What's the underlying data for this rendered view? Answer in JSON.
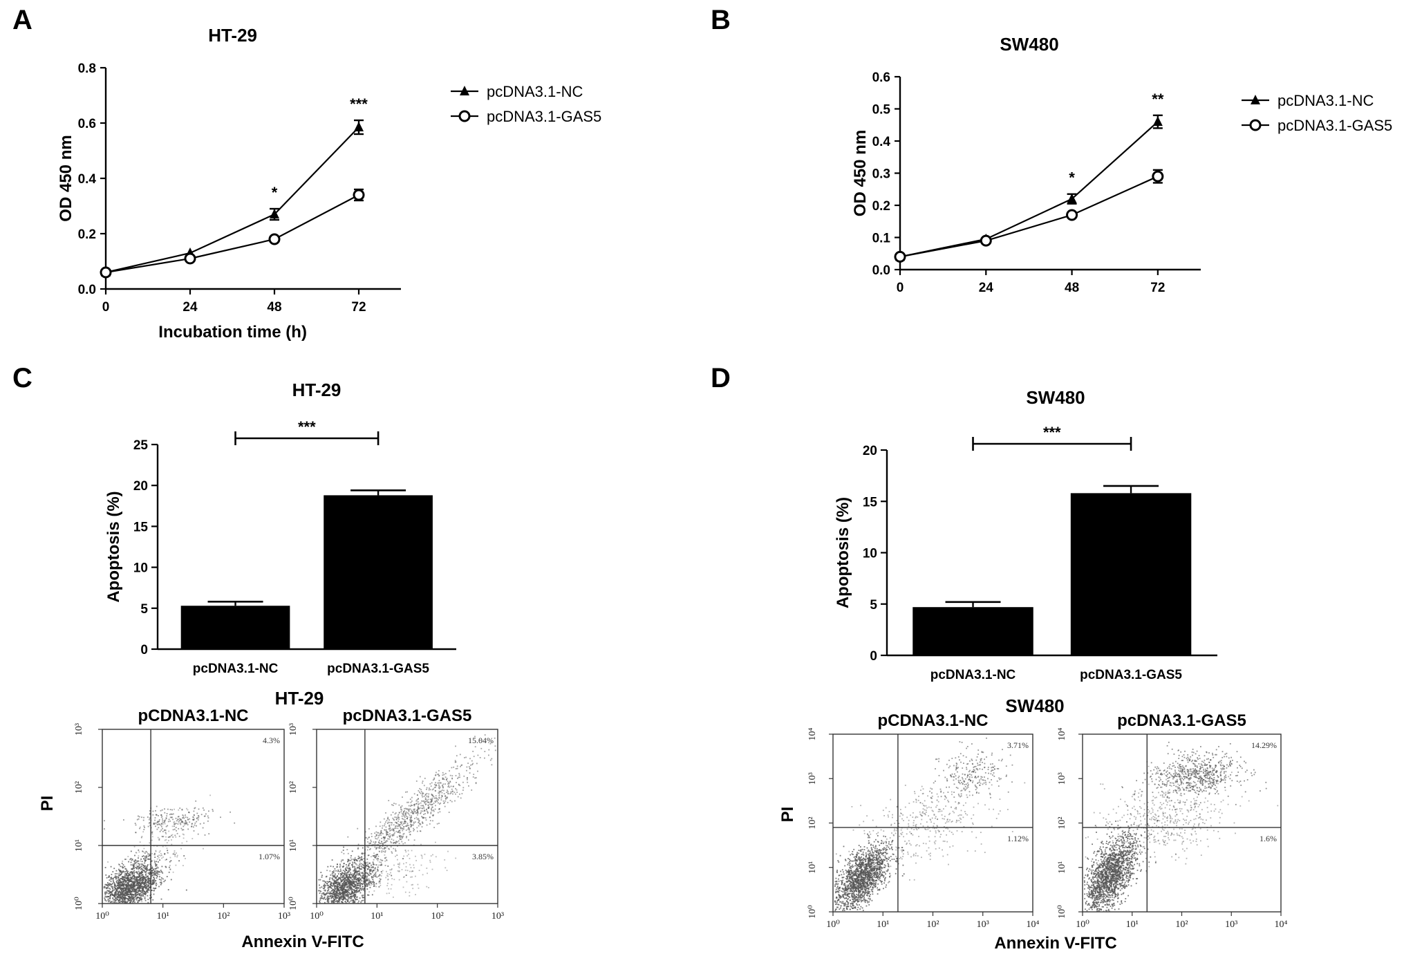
{
  "panels": {
    "A": {
      "letter": "A"
    },
    "B": {
      "letter": "B"
    },
    "C": {
      "letter": "C",
      "flow_title": "HT-29",
      "flow_xlabel": "Annexin V-FITC",
      "flow_ylabel": "PI"
    },
    "D": {
      "letter": "D",
      "flow_title": "SW480",
      "flow_xlabel": "Annexin V-FITC",
      "flow_ylabel": "PI"
    }
  },
  "colors": {
    "ink": "#000000",
    "scatter": "#555555"
  },
  "chart_data": [
    {
      "id": "A",
      "type": "line",
      "title": "HT-29",
      "xlabel": "Incubation time (h)",
      "ylabel": "OD 450 nm",
      "x": [
        0,
        24,
        48,
        72
      ],
      "xticks": [
        "0",
        "24",
        "48",
        "72"
      ],
      "ylim": [
        0,
        0.8
      ],
      "yticks": [
        "0.0",
        "0.2",
        "0.4",
        "0.6",
        "0.8"
      ],
      "legend": "top-right",
      "grid": false,
      "series": [
        {
          "name": "pcDNA3.1-NC",
          "marker": "triangle",
          "values": [
            0.06,
            0.13,
            0.27,
            0.585
          ],
          "err": [
            0,
            0,
            0.02,
            0.025
          ]
        },
        {
          "name": "pcDNA3.1-GAS5",
          "marker": "circle",
          "values": [
            0.06,
            0.11,
            0.18,
            0.34
          ],
          "err": [
            0,
            0,
            0,
            0.02
          ]
        }
      ],
      "annotations": [
        {
          "x": 48,
          "text": "*"
        },
        {
          "x": 72,
          "text": "***"
        }
      ]
    },
    {
      "id": "B",
      "type": "line",
      "title": "SW480",
      "xlabel": "",
      "ylabel": "OD 450 nm",
      "x": [
        0,
        24,
        48,
        72
      ],
      "xticks": [
        "0",
        "24",
        "48",
        "72"
      ],
      "ylim": [
        0,
        0.6
      ],
      "yticks": [
        "0.0",
        "0.1",
        "0.2",
        "0.3",
        "0.4",
        "0.5",
        "0.6"
      ],
      "legend": "top-right",
      "grid": false,
      "series": [
        {
          "name": "pcDNA3.1-NC",
          "marker": "triangle",
          "values": [
            0.04,
            0.095,
            0.22,
            0.46
          ],
          "err": [
            0,
            0,
            0.015,
            0.02
          ]
        },
        {
          "name": "pcDNA3.1-GAS5",
          "marker": "circle",
          "values": [
            0.04,
            0.09,
            0.17,
            0.29
          ],
          "err": [
            0,
            0,
            0,
            0.02
          ]
        }
      ],
      "annotations": [
        {
          "x": 48,
          "text": "*"
        },
        {
          "x": 72,
          "text": "**"
        }
      ]
    },
    {
      "id": "C",
      "type": "bar",
      "title": "HT-29",
      "xlabel": "",
      "ylabel": "Apoptosis (%)",
      "categories": [
        "pcDNA3.1-NC",
        "pcDNA3.1-GAS5"
      ],
      "values": [
        5.3,
        18.8
      ],
      "err": [
        0.5,
        0.6
      ],
      "ylim": [
        0,
        25
      ],
      "yticks": [
        "0",
        "5",
        "10",
        "15",
        "20",
        "25"
      ],
      "significance": "***",
      "grid": false
    },
    {
      "id": "D",
      "type": "bar",
      "title": "SW480",
      "xlabel": "",
      "ylabel": "Apoptosis (%)",
      "categories": [
        "pcDNA3.1-NC",
        "pcDNA3.1-GAS5"
      ],
      "values": [
        4.7,
        15.8
      ],
      "err": [
        0.5,
        0.7
      ],
      "ylim": [
        0,
        20
      ],
      "yticks": [
        "0",
        "5",
        "10",
        "15",
        "20"
      ],
      "significance": "***",
      "grid": false
    },
    {
      "id": "C-flow-NC",
      "type": "scatter",
      "title": "pCDNA3.1-NC",
      "xticks": [
        "10⁰",
        "10¹",
        "10²",
        "10³"
      ],
      "yticks": [
        "10⁰",
        "10¹",
        "10²",
        "10³"
      ],
      "log_scale": true,
      "xlim": [
        0,
        3
      ],
      "ylim": [
        0,
        3
      ],
      "gate": [
        0.8,
        1.0
      ],
      "quadrants": {
        "upper_right": "4.3%",
        "lower_right": "1.07%"
      }
    },
    {
      "id": "C-flow-GAS5",
      "type": "scatter",
      "title": "pcDNA3.1-GAS5",
      "xticks": [
        "10⁰",
        "10¹",
        "10²",
        "10³"
      ],
      "yticks": [
        "10⁰",
        "10¹",
        "10²",
        "10³"
      ],
      "log_scale": true,
      "xlim": [
        0,
        3
      ],
      "ylim": [
        0,
        3
      ],
      "gate": [
        0.8,
        1.0
      ],
      "quadrants": {
        "upper_right": "15.04%",
        "lower_right": "3.85%"
      }
    },
    {
      "id": "D-flow-NC",
      "type": "scatter",
      "title": "pCDNA3.1-NC",
      "xticks": [
        "10⁰",
        "10¹",
        "10²",
        "10³",
        "10⁴"
      ],
      "yticks": [
        "10⁰",
        "10¹",
        "10²",
        "10³",
        "10⁴"
      ],
      "log_scale": true,
      "xlim": [
        0,
        4
      ],
      "ylim": [
        0,
        4
      ],
      "gate": [
        1.3,
        1.9
      ],
      "quadrants": {
        "upper_right": "3.71%",
        "lower_right": "1.12%"
      }
    },
    {
      "id": "D-flow-GAS5",
      "type": "scatter",
      "title": "pcDNA3.1-GAS5",
      "xticks": [
        "10⁰",
        "10¹",
        "10²",
        "10³",
        "10⁴"
      ],
      "yticks": [
        "10⁰",
        "10¹",
        "10²",
        "10³",
        "10⁴"
      ],
      "log_scale": true,
      "xlim": [
        0,
        4
      ],
      "ylim": [
        0,
        4
      ],
      "gate": [
        1.3,
        1.9
      ],
      "quadrants": {
        "upper_right": "14.29%",
        "lower_right": "1.6%"
      }
    }
  ]
}
